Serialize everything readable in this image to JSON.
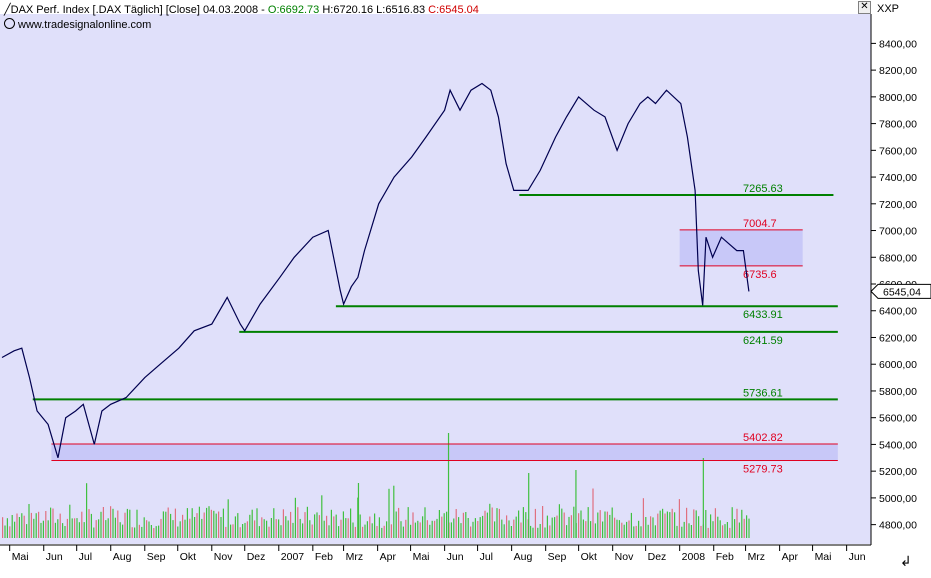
{
  "header": {
    "instrument": "DAX Perf. Index [.DAX",
    "period": "Täglich]",
    "mode": "[Close]",
    "date": "04.03.2008",
    "open": "O:6692.73",
    "high": "H:6720.16",
    "low": "L:6516.83",
    "close": "C:6545.04",
    "website": "www.tradesignalonline.com",
    "axis_name": "XXP",
    "last_price": "6545,04"
  },
  "colors": {
    "background": "#e0e0fa",
    "price_line": "#000050",
    "support_line": "#008000",
    "resistance_line": "#e00020",
    "zone_fill": "#c8c8f8",
    "volume_up": "#40c040",
    "volume_down": "#e07080"
  },
  "chart_data": {
    "type": "line",
    "title": "DAX Perf. Index [.DAX Täglich] [Close]",
    "ylim": [
      4700,
      8560
    ],
    "y_ticks": [
      4800,
      5000,
      5200,
      5400,
      5600,
      5800,
      6000,
      6200,
      6400,
      6600,
      6800,
      7000,
      7200,
      7400,
      7600,
      7800,
      8000,
      8200,
      8400
    ],
    "y_tick_labels": [
      "4800,00",
      "5000,00",
      "5200,00",
      "5400,00",
      "5600,00",
      "5800,00",
      "6000,00",
      "6200,00",
      "6400,00",
      "6600,00",
      "6800,00",
      "7000,00",
      "7200,00",
      "7400,00",
      "7600,00",
      "7800,00",
      "8000,00",
      "8200,00",
      "8400,00"
    ],
    "x_ticks": [
      "2006-05",
      "2006-06",
      "2006-07",
      "2006-08",
      "2006-09",
      "2006-10",
      "2006-11",
      "2006-12",
      "2007-01",
      "2007-02",
      "2007-03",
      "2007-04",
      "2007-05",
      "2007-06",
      "2007-07",
      "2007-08",
      "2007-09",
      "2007-10",
      "2007-11",
      "2007-12",
      "2008-01",
      "2008-02",
      "2008-03",
      "2008-04",
      "2008-05",
      "2008-06"
    ],
    "x_tick_labels": [
      "Mai",
      "Jun",
      "Jul",
      "Aug",
      "Sep",
      "Okt",
      "Nov",
      "Dez",
      "2007",
      "Feb",
      "Mrz",
      "Apr",
      "Mai",
      "Jun",
      "Jul",
      "Aug",
      "Sep",
      "Okt",
      "Nov",
      "Dez",
      "2008",
      "Feb",
      "Mrz",
      "Apr",
      "Mai",
      "Jun"
    ],
    "grid": false,
    "series": [
      {
        "values_date": [
          "2006-04-24",
          "2006-05-05",
          "2006-05-12",
          "2006-05-19",
          "2006-05-26",
          "2006-06-05",
          "2006-06-14",
          "2006-06-21",
          "2006-06-30",
          "2006-07-07",
          "2006-07-17",
          "2006-07-24",
          "2006-08-01",
          "2006-08-15",
          "2006-09-01",
          "2006-09-15",
          "2006-10-02",
          "2006-10-16",
          "2006-11-01",
          "2006-11-15",
          "2006-11-27",
          "2006-12-01",
          "2006-12-15",
          "2007-01-02",
          "2007-01-15",
          "2007-02-01",
          "2007-02-15",
          "2007-02-26",
          "2007-03-01",
          "2007-03-08",
          "2007-03-14",
          "2007-03-20",
          "2007-04-02",
          "2007-04-16",
          "2007-05-02",
          "2007-05-15",
          "2007-06-01",
          "2007-06-06",
          "2007-06-15",
          "2007-06-25",
          "2007-07-05",
          "2007-07-13",
          "2007-07-20",
          "2007-07-27",
          "2007-08-03",
          "2007-08-16",
          "2007-08-27",
          "2007-09-10",
          "2007-09-20",
          "2007-10-01",
          "2007-10-15",
          "2007-10-25",
          "2007-11-05",
          "2007-11-15",
          "2007-11-26",
          "2007-12-03",
          "2007-12-10",
          "2007-12-20",
          "2008-01-02",
          "2008-01-08",
          "2008-01-15",
          "2008-01-18",
          "2008-01-22",
          "2008-01-25",
          "2008-01-31",
          "2008-02-08",
          "2008-02-15",
          "2008-02-22",
          "2008-02-28",
          "2008-03-04"
        ],
        "values": [
          6050,
          6100,
          6120,
          5900,
          5650,
          5550,
          5300,
          5600,
          5650,
          5700,
          5400,
          5650,
          5700,
          5750,
          5900,
          6000,
          6120,
          6250,
          6300,
          6500,
          6300,
          6250,
          6450,
          6650,
          6800,
          6950,
          7000,
          6550,
          6450,
          6580,
          6650,
          6850,
          7200,
          7400,
          7550,
          7700,
          7900,
          8050,
          7900,
          8050,
          8100,
          8050,
          7850,
          7500,
          7300,
          7300,
          7450,
          7700,
          7850,
          8000,
          7900,
          7850,
          7600,
          7800,
          7950,
          8000,
          7950,
          8050,
          7950,
          7700,
          7300,
          6700,
          6440,
          6950,
          6800,
          6950,
          6900,
          6850,
          6850,
          6545
        ]
      }
    ],
    "horizontal_lines": [
      {
        "value": 7265.63,
        "label": "7265.63",
        "color": "#008000",
        "from": "2007-08-08",
        "to": "2008-05-20"
      },
      {
        "value": 7004.7,
        "label": "7004.7",
        "color": "#e00020",
        "from": "2008-01-01",
        "to": "2008-04-22"
      },
      {
        "value": 6735.6,
        "label": "6735.6",
        "color": "#e00020",
        "from": "2008-01-01",
        "to": "2008-04-22"
      },
      {
        "value": 6433.91,
        "label": "6433.91",
        "color": "#008000",
        "from": "2007-02-22",
        "to": "2008-05-24"
      },
      {
        "value": 6241.59,
        "label": "6241.59",
        "color": "#008000",
        "from": "2006-11-26",
        "to": "2008-05-24"
      },
      {
        "value": 5736.61,
        "label": "5736.61",
        "color": "#008000",
        "from": "2006-05-22",
        "to": "2008-05-24"
      },
      {
        "value": 5402.82,
        "label": "5402.82",
        "color": "#e00020",
        "from": "2006-06-08",
        "to": "2008-05-24"
      },
      {
        "value": 5279.73,
        "label": "5279.73",
        "color": "#e00020",
        "from": "2006-06-08",
        "to": "2008-05-24"
      }
    ],
    "zones": [
      {
        "from_value": 6735.6,
        "to_value": 7004.7,
        "from": "2008-01-01",
        "to": "2008-04-22"
      },
      {
        "from_value": 5279.73,
        "to_value": 5402.82,
        "from": "2006-06-08",
        "to": "2008-05-24"
      }
    ]
  }
}
